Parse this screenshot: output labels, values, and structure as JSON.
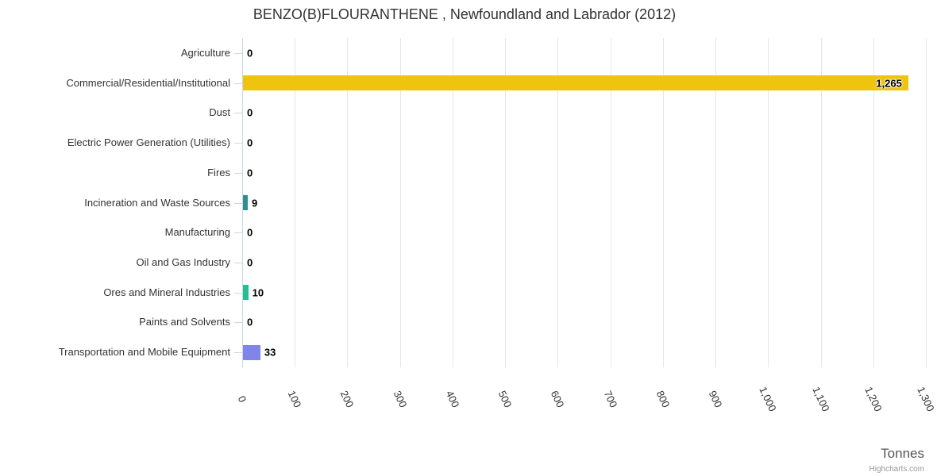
{
  "title": "BENZO(B)FLOURANTHENE , Newfoundland and Labrador (2012)",
  "credits": "Highcharts.com",
  "chart_data": {
    "type": "bar",
    "orientation": "horizontal",
    "title": "BENZO(B)FLOURANTHENE , Newfoundland and Labrador (2012)",
    "categories": [
      "Agriculture",
      "Commercial/Residential/Institutional",
      "Dust",
      "Electric Power Generation (Utilities)",
      "Fires",
      "Incineration and Waste Sources",
      "Manufacturing",
      "Oil and Gas Industry",
      "Ores and Mineral Industries",
      "Paints and Solvents",
      "Transportation and Mobile Equipment"
    ],
    "values": [
      0,
      1265,
      0,
      0,
      0,
      9,
      0,
      0,
      10,
      0,
      33
    ],
    "value_labels": [
      "0",
      "1,265",
      "0",
      "0",
      "0",
      "9",
      "0",
      "0",
      "10",
      "0",
      "33"
    ],
    "bar_colors": [
      null,
      "#eec40e",
      null,
      null,
      null,
      "#2b908f",
      null,
      null,
      "#22bf94",
      null,
      "#8085e9"
    ],
    "xlabel": "Tonnes",
    "xlim": [
      0,
      1300
    ],
    "x_tick_interval": 100,
    "x_tick_labels": [
      "0",
      "100",
      "200",
      "300",
      "400",
      "500",
      "600",
      "700",
      "800",
      "900",
      "1,000",
      "1,100",
      "1,200",
      "1,300"
    ],
    "grid": true,
    "legend": false
  },
  "colors": {
    "background": "#ffffff",
    "grid": "#e6e6e6",
    "axis_line": "#ccd6eb",
    "title_text": "#333333",
    "category_text": "#333333",
    "tick_text": "#333333",
    "value_label_text": "#000000",
    "axis_title_text": "#555555",
    "credits_text": "#999999"
  }
}
